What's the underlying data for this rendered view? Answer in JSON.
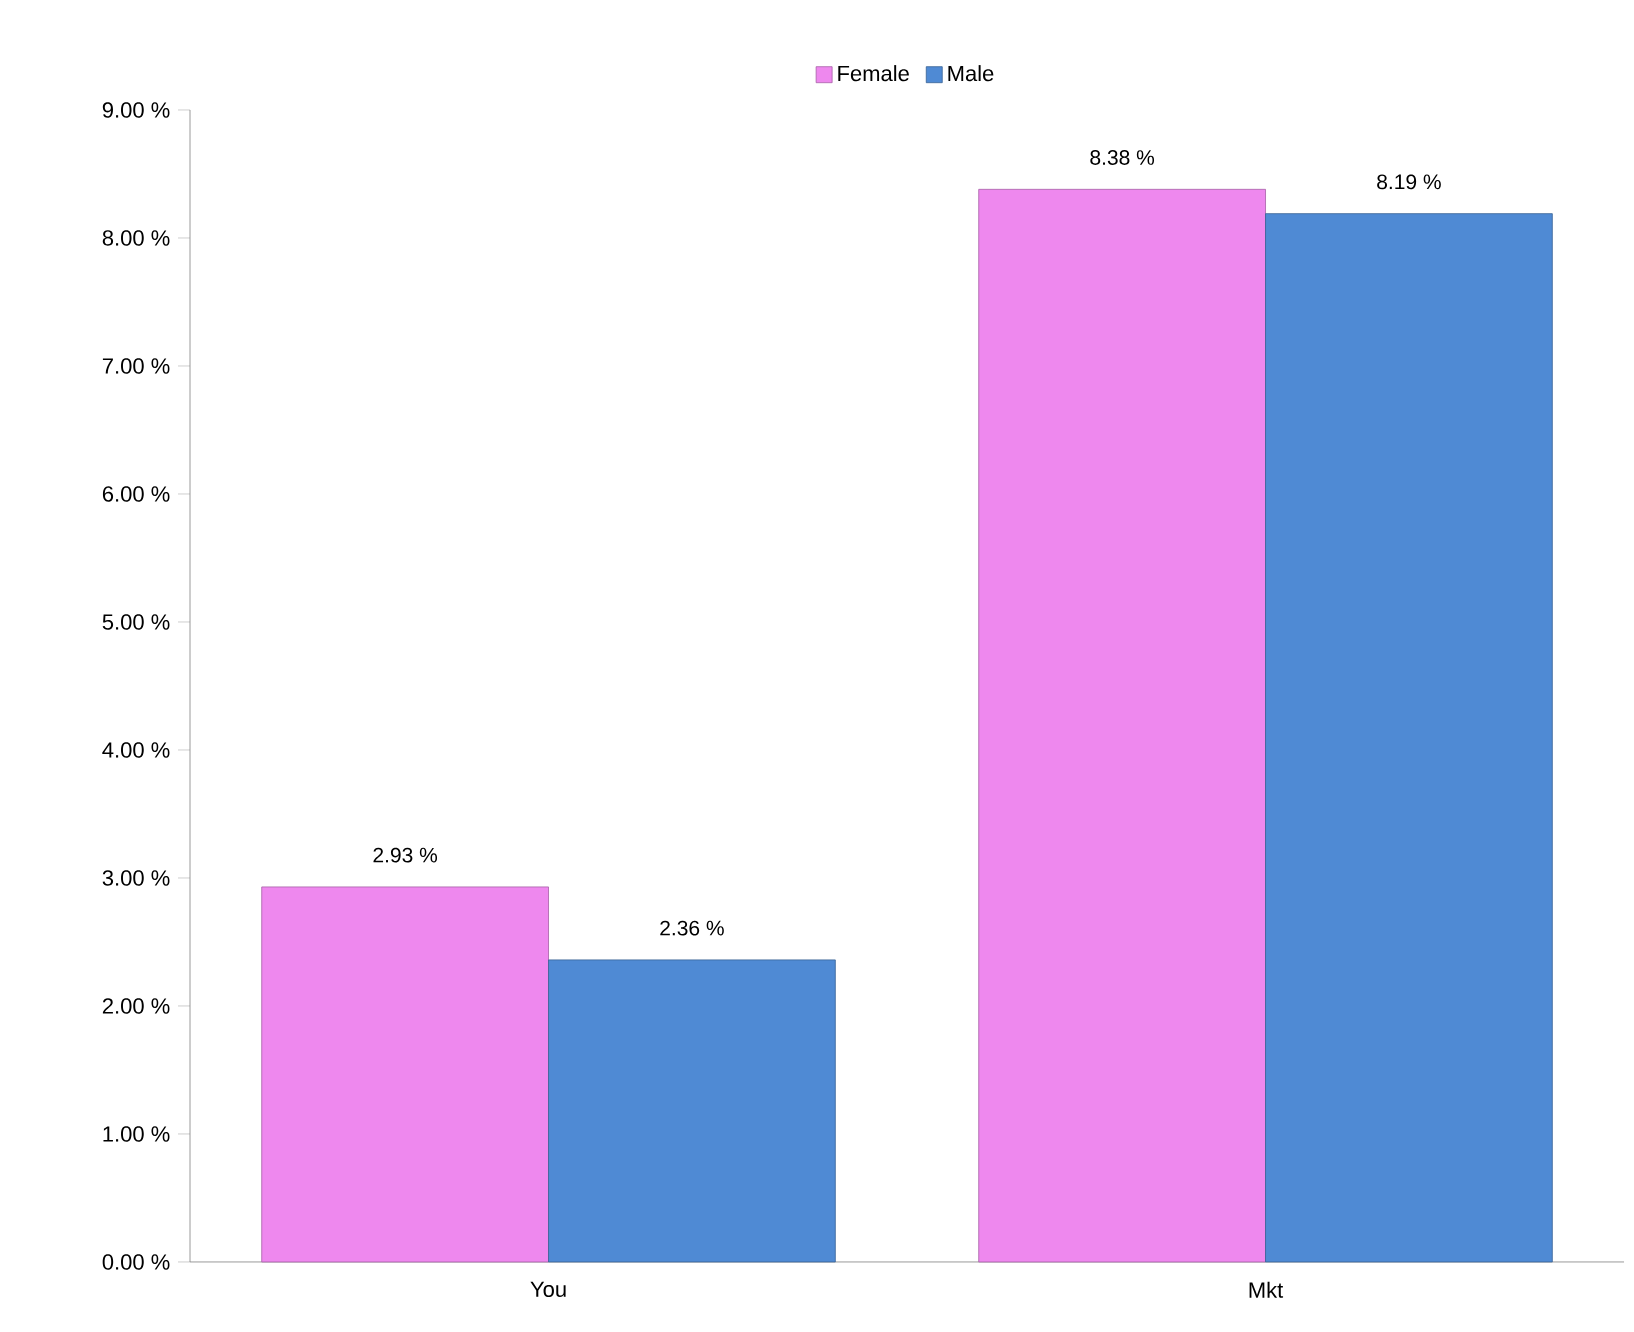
{
  "chart_data": {
    "type": "bar",
    "categories": [
      "You",
      "Mkt"
    ],
    "series": [
      {
        "name": "Female",
        "color": "#ee88ee",
        "values": [
          2.93,
          8.38
        ],
        "value_labels": [
          "2.93 %",
          "8.38 %"
        ]
      },
      {
        "name": "Male",
        "color": "#4f8ad4",
        "values": [
          2.36,
          8.19
        ],
        "value_labels": [
          "2.36 %",
          "8.19 %"
        ]
      }
    ],
    "ylim": [
      0,
      9
    ],
    "yticks": [
      {
        "value": 0,
        "label": "0.00 %"
      },
      {
        "value": 1,
        "label": "1.00 %"
      },
      {
        "value": 2,
        "label": "2.00 %"
      },
      {
        "value": 3,
        "label": "3.00 %"
      },
      {
        "value": 4,
        "label": "4.00 %"
      },
      {
        "value": 5,
        "label": "5.00 %"
      },
      {
        "value": 6,
        "label": "6.00 %"
      },
      {
        "value": 7,
        "label": "7.00 %"
      },
      {
        "value": 8,
        "label": "8.00 %"
      },
      {
        "value": 9,
        "label": "9.00 %"
      }
    ],
    "grid": false,
    "legend": "top"
  }
}
